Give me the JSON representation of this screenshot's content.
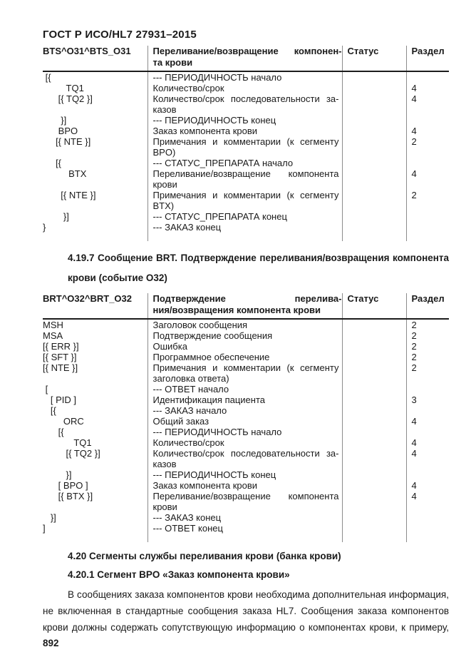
{
  "header": {
    "title": "ГОСТ Р ИСО/HL7 27931–2015"
  },
  "tables": [
    {
      "id": "bts-o31",
      "header": {
        "c1": "BTS^O31^BTS_O31",
        "c2": "Переливание/возвращение компонен-\nта крови",
        "c3": "Статус",
        "c4": "Раздел"
      },
      "rows": [
        {
          "c1": " [{",
          "c2": "--- ПЕРИОДИЧНОСТЬ начало",
          "c3": "",
          "c4": ""
        },
        {
          "c1": "         TQ1",
          "c2": "Количество/срок",
          "c3": "",
          "c4": "4"
        },
        {
          "c1": "      [{ TQ2 }]",
          "c2": "Количество/срок последовательности за-\nказов",
          "c3": "",
          "c4": "4"
        },
        {
          "c1": "       }]",
          "c2": "--- ПЕРИОДИЧНОСТЬ конец",
          "c3": "",
          "c4": ""
        },
        {
          "c1": "      BPO",
          "c2": "Заказ компонента крови",
          "c3": "",
          "c4": "4"
        },
        {
          "c1": "     [{ NTE }]",
          "c2": "Примечания и комментарии (к сегменту\nBPO)",
          "c3": "",
          "c4": "2"
        },
        {
          "c1": "     [{",
          "c2": "--- СТАТУС_ПРЕПАРАТА начало",
          "c3": "",
          "c4": ""
        },
        {
          "c1": "          BTX",
          "c2": "Переливание/возвращение компонента\nкрови",
          "c3": "",
          "c4": "4"
        },
        {
          "c1": "       [{ NTE }]",
          "c2": "Примечания и комментарии (к сегменту\nBTX)",
          "c3": "",
          "c4": "2"
        },
        {
          "c1": "        }]",
          "c2": "--- СТАТУС_ПРЕПАРАТА конец",
          "c3": "",
          "c4": ""
        },
        {
          "c1": "}",
          "c2": "--- ЗАКАЗ конец",
          "c3": "",
          "c4": ""
        }
      ]
    },
    {
      "id": "brt-o32",
      "header": {
        "c1": "BRT^O32^BRT_O32",
        "c2": "Подтверждение перелива-\nния/возвращения компонента крови",
        "c3": "Статус",
        "c4": "Раздел"
      },
      "rows": [
        {
          "c1": "MSH",
          "c2": "Заголовок сообщения",
          "c3": "",
          "c4": "2"
        },
        {
          "c1": "MSA",
          "c2": "Подтверждение сообщения",
          "c3": "",
          "c4": "2"
        },
        {
          "c1": "[{ ERR }]",
          "c2": "Ошибка",
          "c3": "",
          "c4": "2"
        },
        {
          "c1": "[{ SFT }]",
          "c2": "Программное обеспечение",
          "c3": "",
          "c4": "2"
        },
        {
          "c1": "[{ NTE }]",
          "c2": "Примечания и комментарии (к сегменту\nзаголовка ответа)",
          "c3": "",
          "c4": "2"
        },
        {
          "c1": " [",
          "c2": "--- ОТВЕТ начало",
          "c3": "",
          "c4": ""
        },
        {
          "c1": "   [ PID ]",
          "c2": "Идентификация пациента",
          "c3": "",
          "c4": "3"
        },
        {
          "c1": "   [{",
          "c2": "--- ЗАКАЗ начало",
          "c3": "",
          "c4": ""
        },
        {
          "c1": "        ORC",
          "c2": "Общий заказ",
          "c3": "",
          "c4": "4"
        },
        {
          "c1": "      [{",
          "c2": "--- ПЕРИОДИЧНОСТЬ начало",
          "c3": "",
          "c4": ""
        },
        {
          "c1": "            TQ1",
          "c2": "Количество/срок",
          "c3": "",
          "c4": "4"
        },
        {
          "c1": "         [{ TQ2 }]",
          "c2": "Количество/срок последовательности за-\nказов",
          "c3": "",
          "c4": "4"
        },
        {
          "c1": "         }]",
          "c2": "--- ПЕРИОДИЧНОСТЬ конец",
          "c3": "",
          "c4": ""
        },
        {
          "c1": "      [ BPO ]",
          "c2": "Заказ компонента крови",
          "c3": "",
          "c4": "4"
        },
        {
          "c1": "      [{ BTX }]",
          "c2": "Переливание/возвращение компонента\nкрови",
          "c3": "",
          "c4": "4"
        },
        {
          "c1": "   }]",
          "c2": "--- ЗАКАЗ конец",
          "c3": "",
          "c4": ""
        },
        {
          "c1": "]",
          "c2": "--- ОТВЕТ конец",
          "c3": "",
          "c4": ""
        }
      ]
    }
  ],
  "sections": {
    "heading_4_19_7_line1": "4.19.7 Сообщение BRT. Подтверждение переливания/возвращения компонента",
    "heading_4_19_7_line2": "крови (событие О32)",
    "heading_4_20": "4.20 Сегменты службы переливания крови (банка крови)",
    "heading_4_20_1": "4.20.1 Сегмент BPO «Заказ компонента крови»",
    "paragraph_lines": [
      "В сообщениях заказа компонентов крови необходима дополнительная информация,",
      "не включенная в стандартные сообщения заказа HL7. Сообщения заказа компонентов",
      "крови должны содержать сопутствующую информацию о компонентах крови, к примеру,"
    ]
  },
  "footer": {
    "page_number": "892"
  },
  "colors": {
    "text": "#1a1a1a",
    "rule_heavy": "#1c1c1c",
    "rule_light": "#8c8c8c",
    "background": "#ffffff"
  }
}
